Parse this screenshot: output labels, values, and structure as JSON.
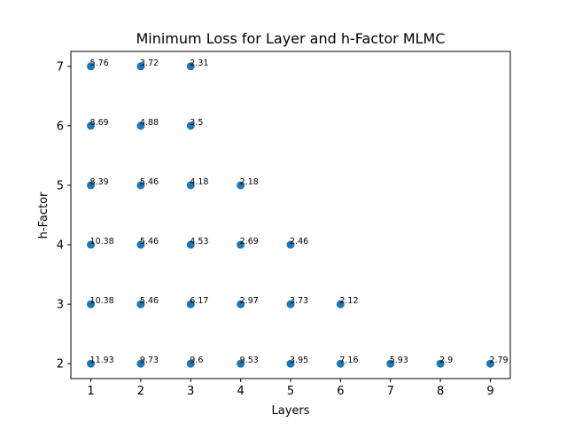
{
  "chart_data": {
    "type": "scatter",
    "title": "Minimum Loss for Layer and h-Factor MLMC",
    "xlabel": "Layers",
    "ylabel": "h-Factor",
    "xlim": [
      0.6,
      9.4
    ],
    "ylim": [
      1.75,
      7.25
    ],
    "xticks": [
      1,
      2,
      3,
      4,
      5,
      6,
      7,
      8,
      9
    ],
    "yticks": [
      2,
      3,
      4,
      5,
      6,
      7
    ],
    "grid": false,
    "marker_color": "#1f77b4",
    "points": [
      {
        "x": 1,
        "y": 7,
        "label": "5.76"
      },
      {
        "x": 2,
        "y": 7,
        "label": "3.72"
      },
      {
        "x": 3,
        "y": 7,
        "label": "2.31"
      },
      {
        "x": 1,
        "y": 6,
        "label": "8.69"
      },
      {
        "x": 2,
        "y": 6,
        "label": "4.88"
      },
      {
        "x": 3,
        "y": 6,
        "label": "3.5"
      },
      {
        "x": 1,
        "y": 5,
        "label": "8.39"
      },
      {
        "x": 2,
        "y": 5,
        "label": "5.46"
      },
      {
        "x": 3,
        "y": 5,
        "label": "4.18"
      },
      {
        "x": 4,
        "y": 5,
        "label": "2.18"
      },
      {
        "x": 1,
        "y": 4,
        "label": "10.38"
      },
      {
        "x": 2,
        "y": 4,
        "label": "5.46"
      },
      {
        "x": 3,
        "y": 4,
        "label": "4.53"
      },
      {
        "x": 4,
        "y": 4,
        "label": "2.69"
      },
      {
        "x": 5,
        "y": 4,
        "label": "2.46"
      },
      {
        "x": 1,
        "y": 3,
        "label": "10.38"
      },
      {
        "x": 2,
        "y": 3,
        "label": "5.46"
      },
      {
        "x": 3,
        "y": 3,
        "label": "6.17"
      },
      {
        "x": 4,
        "y": 3,
        "label": "2.97"
      },
      {
        "x": 5,
        "y": 3,
        "label": "3.73"
      },
      {
        "x": 6,
        "y": 3,
        "label": "2.12"
      },
      {
        "x": 1,
        "y": 2,
        "label": "11.93"
      },
      {
        "x": 2,
        "y": 2,
        "label": "9.73"
      },
      {
        "x": 3,
        "y": 2,
        "label": "9.6"
      },
      {
        "x": 4,
        "y": 2,
        "label": "9.53"
      },
      {
        "x": 5,
        "y": 2,
        "label": "3.95"
      },
      {
        "x": 6,
        "y": 2,
        "label": "7.16"
      },
      {
        "x": 7,
        "y": 2,
        "label": "5.93"
      },
      {
        "x": 8,
        "y": 2,
        "label": "2.9"
      },
      {
        "x": 9,
        "y": 2,
        "label": "2.79"
      }
    ]
  }
}
